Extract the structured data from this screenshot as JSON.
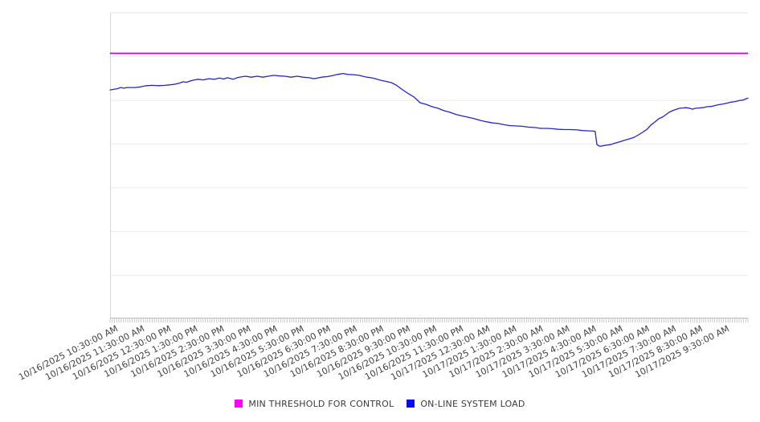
{
  "legend": {
    "items": [
      {
        "label": "MIN THRESHOLD FOR CONTROL",
        "color": "#ff00ff"
      },
      {
        "label": "ON-LINE SYSTEM LOAD",
        "color": "#0b0bef"
      }
    ]
  },
  "chart_data": {
    "type": "line",
    "title": "",
    "legend_position": "bottom",
    "x_axis": {
      "start": "10/16/2025 10:00:00 AM",
      "end": "10/17/2025 10:00:00 AM",
      "total_minutes": 1440,
      "tick_interval_minutes": 60,
      "first_tick_minute": 30,
      "minor_tick_interval_minutes": 5,
      "tick_labels": [
        "10/16/2025 10:30:00 AM",
        "10/16/2025 11:30:00 AM",
        "10/16/2025 12:30:00 PM",
        "10/16/2025 1:30:00 PM",
        "10/16/2025 2:30:00 PM",
        "10/16/2025 3:30:00 PM",
        "10/16/2025 4:30:00 PM",
        "10/16/2025 5:30:00 PM",
        "10/16/2025 6:30:00 PM",
        "10/16/2025 7:30:00 PM",
        "10/16/2025 8:30:00 PM",
        "10/16/2025 9:30:00 PM",
        "10/16/2025 10:30:00 PM",
        "10/16/2025 11:30:00 PM",
        "10/17/2025 12:30:00 AM",
        "10/17/2025 1:30:00 AM",
        "10/17/2025 2:30:00 AM",
        "10/17/2025 3:30:00 AM",
        "10/17/2025 4:30:00 AM",
        "10/17/2025 5:30:00 AM",
        "10/17/2025 6:30:00 AM",
        "10/17/2025 7:30:00 AM",
        "10/17/2025 8:30:00 AM",
        "10/17/2025 9:30:00 AM"
      ]
    },
    "y_axis": {
      "labels_visible": false,
      "unit": "relative load, normalized 0-1 of plot height (no y-axis labels shown in source)",
      "gridline_levels": [
        0.139,
        0.283,
        0.426,
        0.57,
        0.713,
        0.857
      ],
      "range": [
        0,
        1
      ]
    },
    "series": [
      {
        "name": "MIN THRESHOLD FOR CONTROL",
        "type": "threshold",
        "color": "#d400d4",
        "value": 0.867
      },
      {
        "name": "ON-LINE SYSTEM LOAD",
        "type": "line",
        "color": "#2424cc",
        "points": [
          [
            0,
            0.747
          ],
          [
            16,
            0.751
          ],
          [
            24,
            0.755
          ],
          [
            31,
            0.753
          ],
          [
            38,
            0.755
          ],
          [
            56,
            0.755
          ],
          [
            69,
            0.757
          ],
          [
            82,
            0.761
          ],
          [
            96,
            0.762
          ],
          [
            109,
            0.761
          ],
          [
            123,
            0.762
          ],
          [
            136,
            0.764
          ],
          [
            147,
            0.766
          ],
          [
            158,
            0.77
          ],
          [
            165,
            0.774
          ],
          [
            172,
            0.772
          ],
          [
            180,
            0.776
          ],
          [
            187,
            0.779
          ],
          [
            199,
            0.782
          ],
          [
            210,
            0.78
          ],
          [
            223,
            0.784
          ],
          [
            236,
            0.782
          ],
          [
            247,
            0.786
          ],
          [
            256,
            0.783
          ],
          [
            265,
            0.787
          ],
          [
            278,
            0.782
          ],
          [
            288,
            0.788
          ],
          [
            305,
            0.792
          ],
          [
            319,
            0.789
          ],
          [
            332,
            0.792
          ],
          [
            345,
            0.789
          ],
          [
            357,
            0.792
          ],
          [
            370,
            0.795
          ],
          [
            383,
            0.793
          ],
          [
            395,
            0.792
          ],
          [
            408,
            0.789
          ],
          [
            423,
            0.792
          ],
          [
            435,
            0.789
          ],
          [
            450,
            0.787
          ],
          [
            459,
            0.784
          ],
          [
            468,
            0.786
          ],
          [
            477,
            0.789
          ],
          [
            492,
            0.791
          ],
          [
            502,
            0.794
          ],
          [
            513,
            0.798
          ],
          [
            526,
            0.801
          ],
          [
            537,
            0.798
          ],
          [
            550,
            0.797
          ],
          [
            562,
            0.795
          ],
          [
            573,
            0.791
          ],
          [
            580,
            0.789
          ],
          [
            589,
            0.787
          ],
          [
            599,
            0.784
          ],
          [
            608,
            0.78
          ],
          [
            617,
            0.777
          ],
          [
            626,
            0.774
          ],
          [
            635,
            0.771
          ],
          [
            646,
            0.763
          ],
          [
            658,
            0.75
          ],
          [
            671,
            0.737
          ],
          [
            686,
            0.724
          ],
          [
            700,
            0.705
          ],
          [
            713,
            0.7
          ],
          [
            727,
            0.692
          ],
          [
            740,
            0.687
          ],
          [
            754,
            0.679
          ],
          [
            767,
            0.674
          ],
          [
            782,
            0.666
          ],
          [
            794,
            0.662
          ],
          [
            809,
            0.657
          ],
          [
            822,
            0.653
          ],
          [
            836,
            0.647
          ],
          [
            849,
            0.643
          ],
          [
            863,
            0.639
          ],
          [
            876,
            0.637
          ],
          [
            890,
            0.633
          ],
          [
            903,
            0.63
          ],
          [
            918,
            0.629
          ],
          [
            930,
            0.628
          ],
          [
            945,
            0.625
          ],
          [
            958,
            0.624
          ],
          [
            972,
            0.621
          ],
          [
            985,
            0.621
          ],
          [
            999,
            0.62
          ],
          [
            1012,
            0.618
          ],
          [
            1027,
            0.617
          ],
          [
            1039,
            0.617
          ],
          [
            1054,
            0.616
          ],
          [
            1066,
            0.614
          ],
          [
            1081,
            0.613
          ],
          [
            1090,
            0.612
          ],
          [
            1095,
            0.611
          ],
          [
            1099,
            0.568
          ],
          [
            1103,
            0.564
          ],
          [
            1108,
            0.562
          ],
          [
            1112,
            0.564
          ],
          [
            1121,
            0.566
          ],
          [
            1130,
            0.568
          ],
          [
            1139,
            0.572
          ],
          [
            1148,
            0.576
          ],
          [
            1157,
            0.58
          ],
          [
            1166,
            0.584
          ],
          [
            1175,
            0.588
          ],
          [
            1184,
            0.592
          ],
          [
            1193,
            0.6
          ],
          [
            1202,
            0.608
          ],
          [
            1212,
            0.618
          ],
          [
            1221,
            0.632
          ],
          [
            1230,
            0.642
          ],
          [
            1239,
            0.653
          ],
          [
            1248,
            0.659
          ],
          [
            1255,
            0.666
          ],
          [
            1262,
            0.674
          ],
          [
            1271,
            0.68
          ],
          [
            1279,
            0.684
          ],
          [
            1286,
            0.687
          ],
          [
            1293,
            0.688
          ],
          [
            1300,
            0.689
          ],
          [
            1308,
            0.687
          ],
          [
            1315,
            0.684
          ],
          [
            1322,
            0.687
          ],
          [
            1329,
            0.688
          ],
          [
            1338,
            0.689
          ],
          [
            1348,
            0.692
          ],
          [
            1357,
            0.693
          ],
          [
            1366,
            0.696
          ],
          [
            1375,
            0.699
          ],
          [
            1384,
            0.701
          ],
          [
            1393,
            0.704
          ],
          [
            1402,
            0.707
          ],
          [
            1411,
            0.709
          ],
          [
            1420,
            0.712
          ],
          [
            1429,
            0.714
          ],
          [
            1434,
            0.717
          ],
          [
            1440,
            0.72
          ]
        ]
      }
    ],
    "colors": {
      "gridline": "#ececec",
      "plot_left_border": "#d7d7d7",
      "plot_top_border": "#e4e4e4",
      "axis_line": "#bdbdbd",
      "minor_tick": "#bdbdbd",
      "tick_label_text": "#3f3f3f"
    }
  }
}
